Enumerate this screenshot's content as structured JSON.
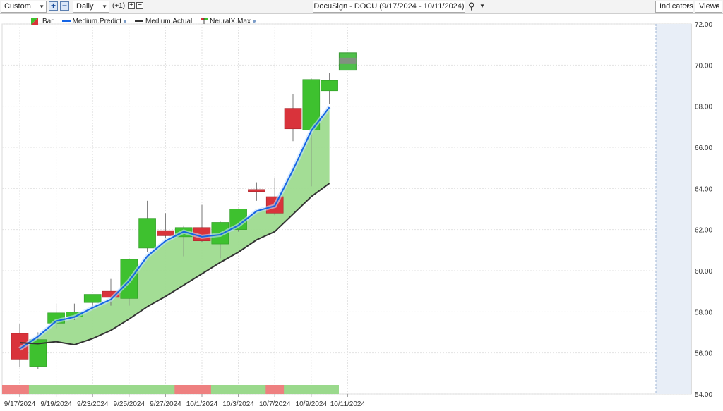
{
  "toolbar": {
    "period_select": "Custom",
    "interval_select": "Daily",
    "offset_label": "(+1)",
    "title": "DocuSign - DOCU (9/17/2024 - 10/11/2024)",
    "indicators_label": "Indicators",
    "views_label": "Views"
  },
  "legend": {
    "bar_label": "Bar",
    "predict_label": "Medium.Predict",
    "actual_label": "Medium.Actual",
    "neural_label": "NeuralX.Max"
  },
  "colors": {
    "up": "#3ec12f",
    "down": "#d9333b",
    "predict": "#1565e6",
    "actual": "#333333",
    "fill": "#9edb8f",
    "strip_up": "#9ad98c",
    "strip_down": "#ee8080",
    "forecast_bg": "#e8eef7"
  },
  "chart_data": {
    "type": "candlestick",
    "ylim": [
      54,
      72
    ],
    "y_ticks": [
      "72.00",
      "70.00",
      "68.00",
      "66.00",
      "64.00",
      "62.00",
      "60.00",
      "58.00",
      "56.00",
      "54.00"
    ],
    "x_tick_labels": [
      "9/17/2024",
      "9/19/2024",
      "9/23/2024",
      "9/25/2024",
      "9/27/2024",
      "10/1/2024",
      "10/3/2024",
      "10/7/2024",
      "10/9/2024",
      "10/11/2024"
    ],
    "dates": [
      "9/17/2024",
      "9/18/2024",
      "9/19/2024",
      "9/20/2024",
      "9/23/2024",
      "9/24/2024",
      "9/25/2024",
      "9/26/2024",
      "9/27/2024",
      "9/30/2024",
      "10/1/2024",
      "10/2/2024",
      "10/3/2024",
      "10/4/2024",
      "10/7/2024",
      "10/8/2024",
      "10/9/2024",
      "10/10/2024"
    ],
    "candles": [
      {
        "open": 56.95,
        "high": 57.4,
        "low": 55.3,
        "close": 55.7
      },
      {
        "open": 55.35,
        "high": 57.0,
        "low": 55.2,
        "close": 56.65
      },
      {
        "open": 57.45,
        "high": 58.4,
        "low": 57.2,
        "close": 57.95
      },
      {
        "open": 57.75,
        "high": 58.4,
        "low": 57.6,
        "close": 58.0
      },
      {
        "open": 58.45,
        "high": 58.8,
        "low": 58.1,
        "close": 58.85
      },
      {
        "open": 59.0,
        "high": 59.6,
        "low": 58.3,
        "close": 58.7
      },
      {
        "open": 58.65,
        "high": 60.6,
        "low": 58.3,
        "close": 60.55
      },
      {
        "open": 61.1,
        "high": 63.4,
        "low": 60.9,
        "close": 62.55
      },
      {
        "open": 61.95,
        "high": 62.8,
        "low": 61.6,
        "close": 61.7
      },
      {
        "open": 61.65,
        "high": 62.2,
        "low": 60.7,
        "close": 62.1
      },
      {
        "open": 62.1,
        "high": 63.2,
        "low": 61.4,
        "close": 61.45
      },
      {
        "open": 61.3,
        "high": 62.4,
        "low": 60.6,
        "close": 62.35
      },
      {
        "open": 62.0,
        "high": 63.0,
        "low": 61.9,
        "close": 63.0
      },
      {
        "open": 63.95,
        "high": 64.3,
        "low": 63.4,
        "close": 63.85
      },
      {
        "open": 63.6,
        "high": 64.5,
        "low": 62.7,
        "close": 62.8
      },
      {
        "open": 67.9,
        "high": 68.6,
        "low": 66.3,
        "close": 66.9
      },
      {
        "open": 66.85,
        "high": 69.35,
        "low": 64.1,
        "close": 69.3
      },
      {
        "open": 68.75,
        "high": 69.6,
        "low": 68.1,
        "close": 69.25
      }
    ],
    "series": [
      {
        "name": "Medium.Predict",
        "values": [
          56.2,
          56.8,
          57.55,
          57.75,
          58.2,
          58.6,
          59.5,
          60.7,
          61.45,
          61.9,
          61.65,
          61.75,
          62.2,
          62.9,
          63.15,
          64.9,
          66.8,
          67.95
        ]
      },
      {
        "name": "Medium.Actual",
        "values": [
          56.5,
          56.45,
          56.55,
          56.4,
          56.7,
          57.1,
          57.65,
          58.25,
          58.75,
          59.3,
          59.85,
          60.4,
          60.9,
          61.5,
          61.9,
          62.75,
          63.6,
          64.25
        ]
      }
    ],
    "neuralx_max": {
      "date": "10/11/2024",
      "high": 70.6,
      "low": 69.75
    },
    "signal_strip": [
      "down",
      "up",
      "up",
      "up",
      "up",
      "up",
      "up",
      "up",
      "up",
      "down",
      "down",
      "up",
      "up",
      "up",
      "down",
      "up",
      "up",
      "up"
    ]
  }
}
